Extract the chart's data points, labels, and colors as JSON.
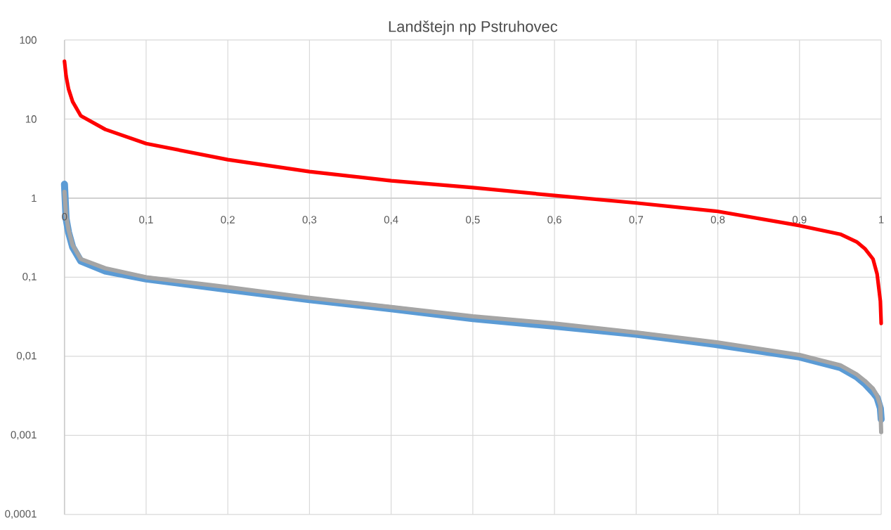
{
  "chart_data": {
    "type": "line",
    "title": "Landštejn np Pstruhovec",
    "log": "y",
    "grid": true,
    "marker": "none",
    "xlim": [
      0,
      1
    ],
    "ylim": [
      0.0001,
      100
    ],
    "xticks": [
      0,
      {
        "value": 0.1,
        "label": "0,1"
      },
      {
        "value": 0.2,
        "label": "0,2"
      },
      {
        "value": 0.3,
        "label": "0,3"
      },
      {
        "value": 0.4,
        "label": "0,4"
      },
      {
        "value": 0.5,
        "label": "0,5"
      },
      {
        "value": 0.6,
        "label": "0,6"
      },
      {
        "value": 0.7,
        "label": "0,7"
      },
      {
        "value": 0.8,
        "label": "0,8"
      },
      {
        "value": 0.9,
        "label": "0,9"
      },
      1
    ],
    "yticks": [
      {
        "value": 0.0001,
        "label": "0,0001"
      },
      {
        "value": 0.001,
        "label": "0,001"
      },
      {
        "value": 0.01,
        "label": "0,01"
      },
      {
        "value": 0.1,
        "label": "0,1"
      },
      1,
      10,
      100
    ],
    "x": [
      0,
      0.002,
      0.005,
      0.01,
      0.02,
      0.05,
      0.1,
      0.2,
      0.3,
      0.4,
      0.5,
      0.6,
      0.7,
      0.8,
      0.9,
      0.95,
      0.97,
      0.98,
      0.99,
      0.995,
      0.999,
      1
    ],
    "series": [
      {
        "color": "#ff0000",
        "values": [
          54,
          35,
          24,
          16.6,
          11,
          7.4,
          4.9,
          3.07,
          2.17,
          1.66,
          1.36,
          1.08,
          0.87,
          0.68,
          0.45,
          0.35,
          0.28,
          0.23,
          0.17,
          0.11,
          0.05,
          0.026
        ]
      },
      {
        "color": "#5b9bd5",
        "values": [
          1.5,
          0.55,
          0.37,
          0.24,
          0.16,
          0.12,
          0.095,
          0.07,
          0.052,
          0.04,
          0.03,
          0.024,
          0.019,
          0.014,
          0.0098,
          0.0072,
          0.0055,
          0.0045,
          0.0035,
          0.003,
          0.0022,
          0.0016
        ]
      },
      {
        "color": "#a5a5a5",
        "values": [
          1.2,
          0.6,
          0.4,
          0.255,
          0.17,
          0.13,
          0.1,
          0.075,
          0.055,
          0.042,
          0.032,
          0.026,
          0.02,
          0.015,
          0.0104,
          0.0077,
          0.0059,
          0.0049,
          0.0039,
          0.0032,
          0.0024,
          0.0011
        ]
      }
    ]
  }
}
